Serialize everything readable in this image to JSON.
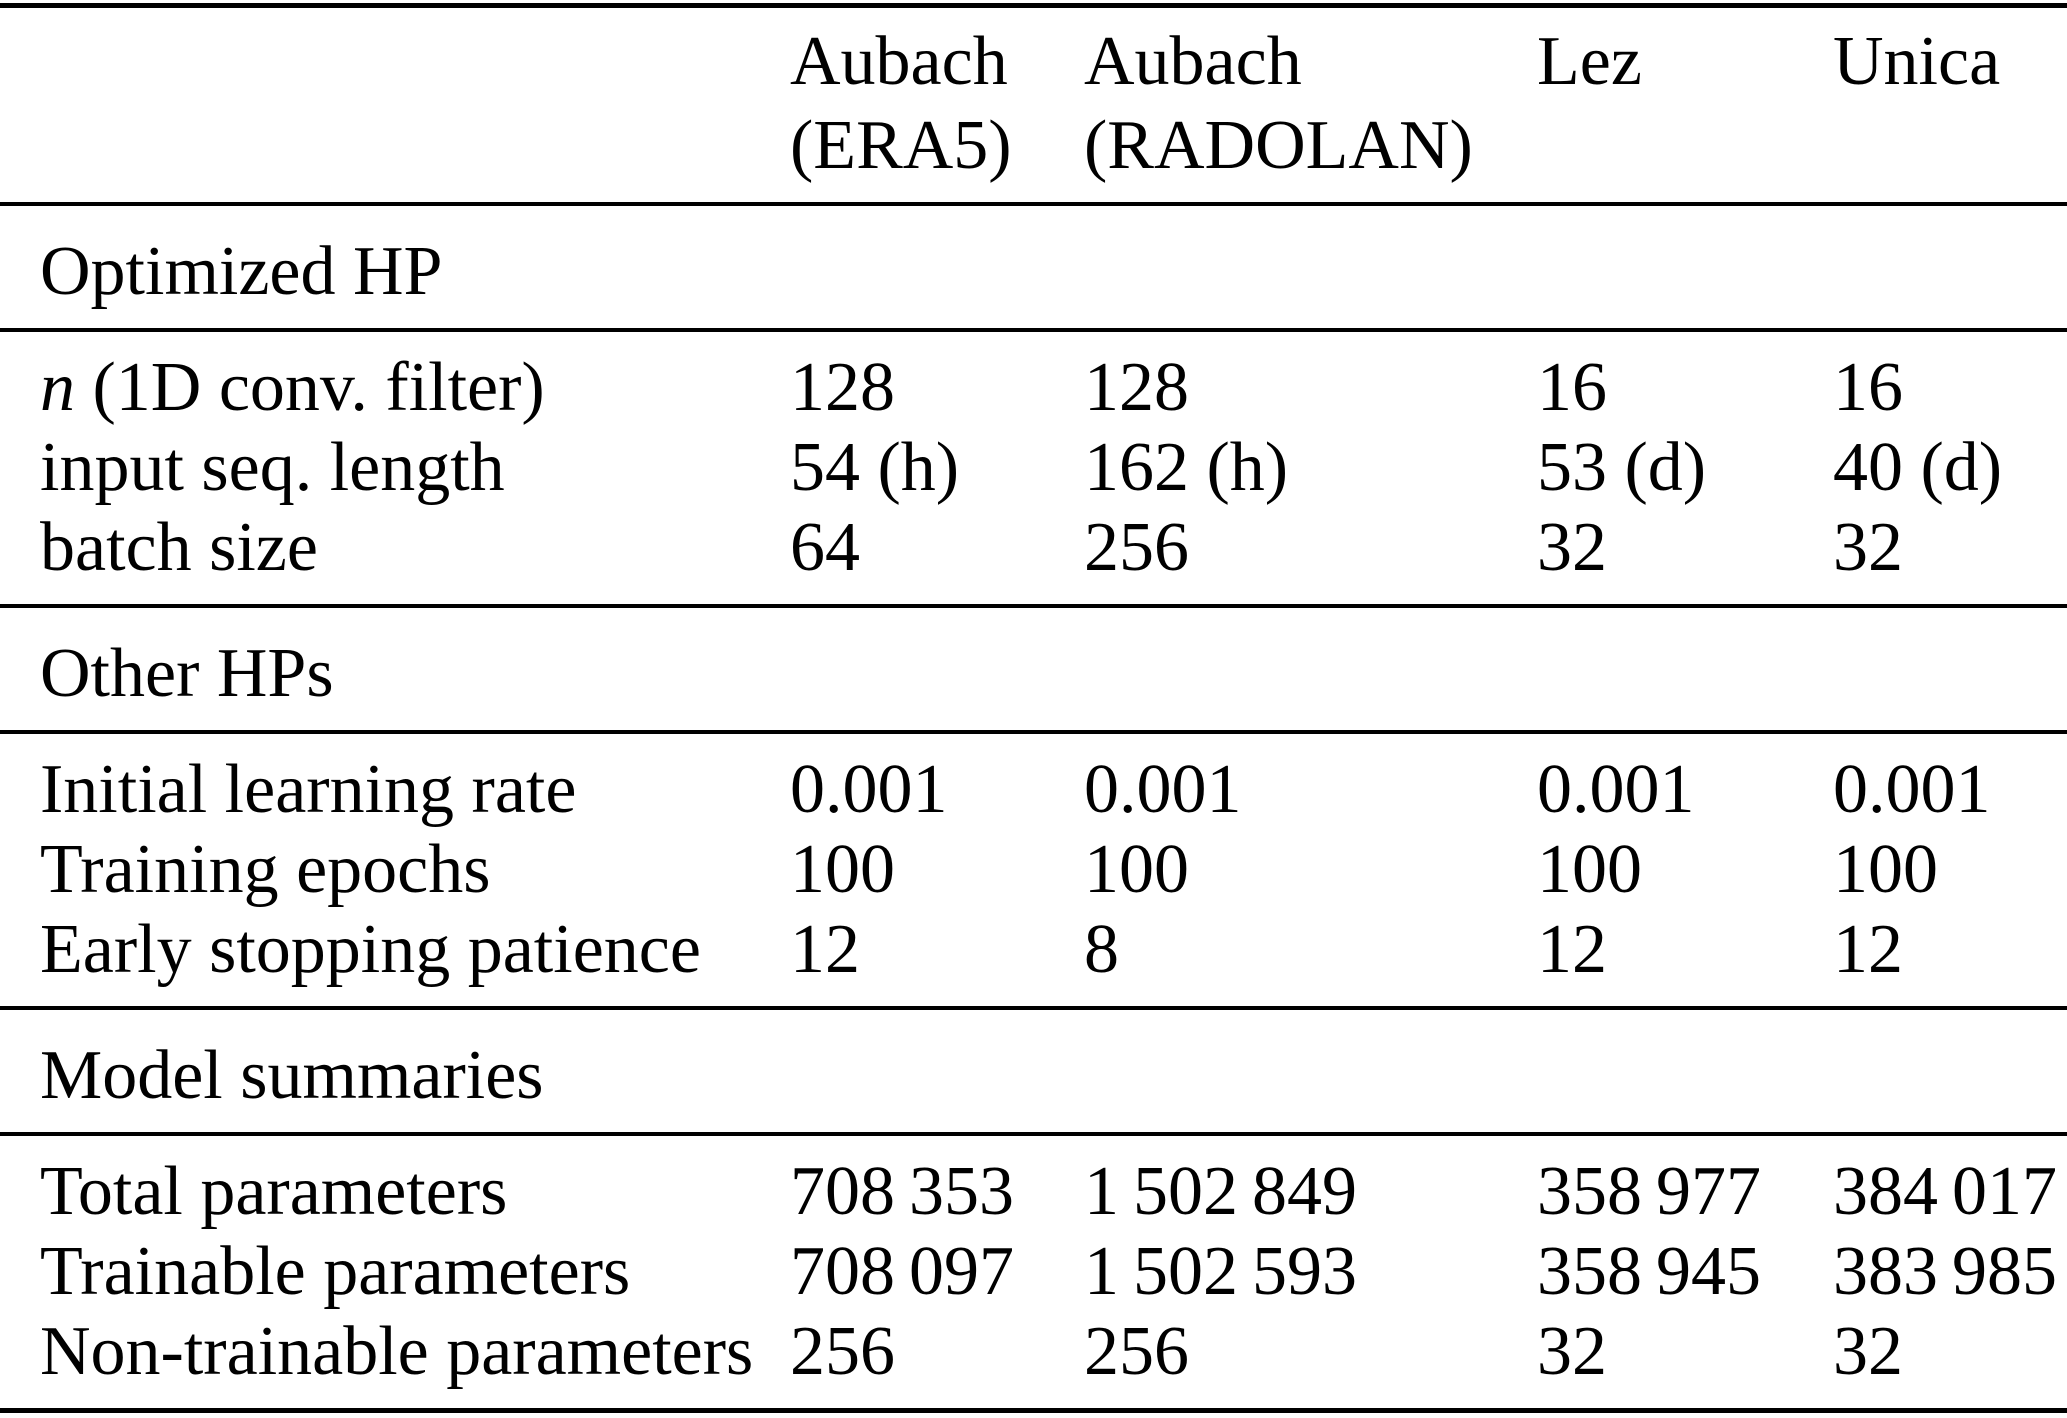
{
  "colors": {
    "background": "#ffffff",
    "text": "#000000",
    "rule": "#000000"
  },
  "header": {
    "columns": [
      {
        "line1": "Aubach",
        "line2": "(ERA5)"
      },
      {
        "line1": "Aubach",
        "line2": "(RADOLAN)"
      },
      {
        "line1": "Lez",
        "line2": ""
      },
      {
        "line1": "Unica",
        "line2": ""
      }
    ]
  },
  "sections": [
    {
      "title": "Optimized HP",
      "rows": [
        {
          "label_italic": "n",
          "label": " (1D conv. filter)",
          "values": [
            "128",
            "128",
            "16",
            "16"
          ]
        },
        {
          "label_italic": "",
          "label": "input seq. length",
          "values": [
            "54 (h)",
            "162 (h)",
            "53 (d)",
            "40 (d)"
          ]
        },
        {
          "label_italic": "",
          "label": "batch size",
          "values": [
            "64",
            "256",
            "32",
            "32"
          ]
        }
      ]
    },
    {
      "title": "Other HPs",
      "rows": [
        {
          "label_italic": "",
          "label": "Initial learning rate",
          "values": [
            "0.001",
            "0.001",
            "0.001",
            "0.001"
          ]
        },
        {
          "label_italic": "",
          "label": "Training epochs",
          "values": [
            "100",
            "100",
            "100",
            "100"
          ]
        },
        {
          "label_italic": "",
          "label": "Early stopping patience",
          "values": [
            "12",
            "8",
            "12",
            "12"
          ]
        }
      ]
    },
    {
      "title": "Model summaries",
      "rows": [
        {
          "label_italic": "",
          "label": "Total parameters",
          "values": [
            "708 353",
            "1 502 849",
            "358 977",
            "384 017"
          ]
        },
        {
          "label_italic": "",
          "label": "Trainable parameters",
          "values": [
            "708 097",
            "1 502 593",
            "358 945",
            "383 985"
          ]
        },
        {
          "label_italic": "",
          "label": "Non-trainable parameters",
          "values": [
            "256",
            "256",
            "32",
            "32"
          ]
        }
      ]
    }
  ]
}
